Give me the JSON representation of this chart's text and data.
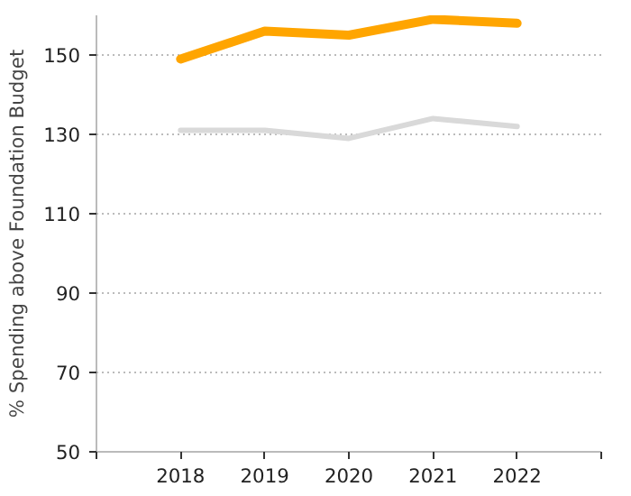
{
  "chart_data": {
    "type": "line",
    "ylabel": "% Spending above Foundation Budget",
    "x": [
      2018,
      2019,
      2020,
      2021,
      2022
    ],
    "series": [
      {
        "color": "#ffa500",
        "values": [
          149,
          156,
          155,
          159,
          158
        ]
      },
      {
        "color": "#d9d9d9",
        "values": [
          131,
          131,
          129,
          134,
          132
        ]
      }
    ],
    "xlim": [
      2017,
      2023
    ],
    "xticks": [
      {
        "value": 2017,
        "label": null
      },
      2018,
      2019,
      2020,
      2021,
      2022,
      {
        "value": 2023,
        "label": null
      }
    ],
    "ylim": [
      50,
      160
    ],
    "yticks": [
      50,
      70,
      90,
      110,
      130,
      150
    ],
    "grid": "y",
    "marker": "none",
    "line_style": "solid"
  }
}
